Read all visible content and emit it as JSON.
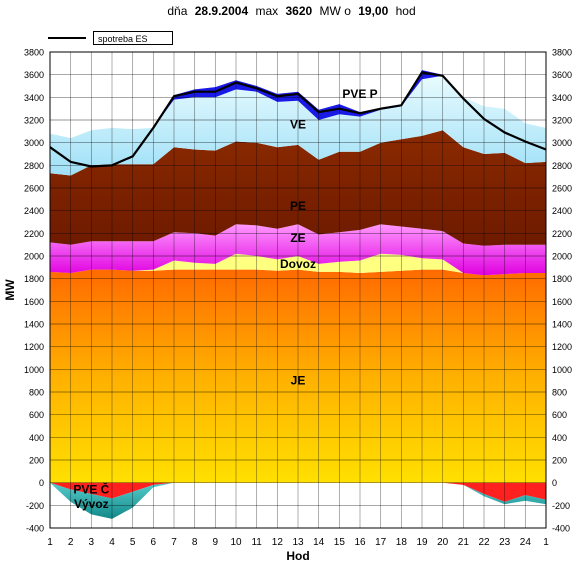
{
  "header": {
    "day_label": "dňa",
    "date": "28.9.2004",
    "max_label": "max",
    "max_value": "3620",
    "unit_label": "MW o",
    "time_value": "19,00",
    "time_unit": "hod"
  },
  "legend": {
    "line_label": "spotreba ES"
  },
  "chart_data": {
    "type": "area",
    "xlabel": "Hod",
    "ylabel": "MW",
    "ylim": [
      -400,
      3800
    ],
    "x": [
      "1",
      "2",
      "3",
      "4",
      "5",
      "6",
      "7",
      "8",
      "9",
      "10",
      "11",
      "12",
      "13",
      "14",
      "15",
      "16",
      "17",
      "18",
      "19",
      "20",
      "21",
      "22",
      "23",
      "24",
      "1"
    ],
    "yticks": [
      -400,
      -200,
      0,
      200,
      400,
      600,
      800,
      1000,
      1200,
      1400,
      1600,
      1800,
      2000,
      2200,
      2400,
      2600,
      2800,
      3000,
      3200,
      3400,
      3600,
      3800
    ],
    "stack_top": [
      {
        "name": "JE",
        "color": "#f29000",
        "values": [
          1860,
          1850,
          1880,
          1880,
          1870,
          1870,
          1880,
          1880,
          1880,
          1880,
          1880,
          1870,
          1880,
          1860,
          1860,
          1850,
          1860,
          1870,
          1880,
          1880,
          1850,
          1830,
          1840,
          1850,
          1850
        ]
      },
      {
        "name": "Dovoz",
        "color": "#ffff80",
        "values": [
          1860,
          1850,
          1880,
          1880,
          1870,
          1880,
          1960,
          1940,
          1930,
          2020,
          2000,
          1970,
          2000,
          1930,
          1950,
          1960,
          2020,
          2010,
          1980,
          1970,
          1850,
          1830,
          1840,
          1850,
          1850
        ]
      },
      {
        "name": "ZE",
        "color": "#ff66ff",
        "values": [
          2120,
          2100,
          2130,
          2130,
          2130,
          2130,
          2210,
          2200,
          2180,
          2280,
          2270,
          2240,
          2280,
          2190,
          2210,
          2230,
          2280,
          2260,
          2240,
          2220,
          2110,
          2090,
          2100,
          2100,
          2100
        ]
      },
      {
        "name": "PE",
        "color": "#8b2500",
        "values": [
          2730,
          2710,
          2800,
          2810,
          2810,
          2810,
          2960,
          2940,
          2930,
          3010,
          3000,
          2960,
          2980,
          2850,
          2920,
          2920,
          3000,
          3030,
          3060,
          3110,
          2960,
          2900,
          2910,
          2820,
          2830
        ]
      },
      {
        "name": "VE",
        "color": "#bdeffd",
        "values": [
          3080,
          3040,
          3110,
          3130,
          3120,
          3130,
          3380,
          3400,
          3400,
          3470,
          3450,
          3360,
          3370,
          3200,
          3250,
          3230,
          3290,
          3320,
          3560,
          3590,
          3400,
          3320,
          3300,
          3170,
          3130
        ]
      },
      {
        "name": "PVE P",
        "color": "#1a1ae6",
        "values": [
          3080,
          3040,
          3110,
          3130,
          3120,
          3130,
          3420,
          3470,
          3490,
          3550,
          3500,
          3430,
          3450,
          3290,
          3340,
          3270,
          3290,
          3330,
          3640,
          3600,
          3400,
          3320,
          3300,
          3170,
          3130
        ]
      }
    ],
    "stack_bottom": [
      {
        "name": "PVE Č",
        "color": "#ff2020",
        "values": [
          0,
          -60,
          -100,
          -140,
          -80,
          -20,
          0,
          0,
          0,
          0,
          0,
          0,
          0,
          0,
          0,
          0,
          0,
          0,
          0,
          0,
          -20,
          -100,
          -170,
          -110,
          -150
        ]
      },
      {
        "name": "Vývoz",
        "color": "#33aaaa",
        "values": [
          0,
          -170,
          -280,
          -320,
          -220,
          -40,
          0,
          0,
          0,
          0,
          0,
          0,
          0,
          0,
          0,
          0,
          0,
          0,
          0,
          0,
          -20,
          -120,
          -190,
          -160,
          -190
        ]
      }
    ],
    "series_line": {
      "name": "spotreba ES",
      "values": [
        2960,
        2830,
        2790,
        2800,
        2880,
        3130,
        3410,
        3450,
        3450,
        3530,
        3480,
        3410,
        3430,
        3270,
        3300,
        3260,
        3300,
        3330,
        3620,
        3590,
        3390,
        3210,
        3090,
        3010,
        2940
      ]
    },
    "labels": [
      {
        "text": "PVE P",
        "x": 16,
        "y": 3430
      },
      {
        "text": "VE",
        "x": 13,
        "y": 3160
      },
      {
        "text": "PE",
        "x": 13,
        "y": 2440
      },
      {
        "text": "ZE",
        "x": 13,
        "y": 2160
      },
      {
        "text": "Dovoz",
        "x": 13,
        "y": 1930
      },
      {
        "text": "JE",
        "x": 13,
        "y": 900
      },
      {
        "text": "PVE Č",
        "x": 3,
        "y": -60
      },
      {
        "text": "Vývoz",
        "x": 3,
        "y": -190
      }
    ]
  }
}
